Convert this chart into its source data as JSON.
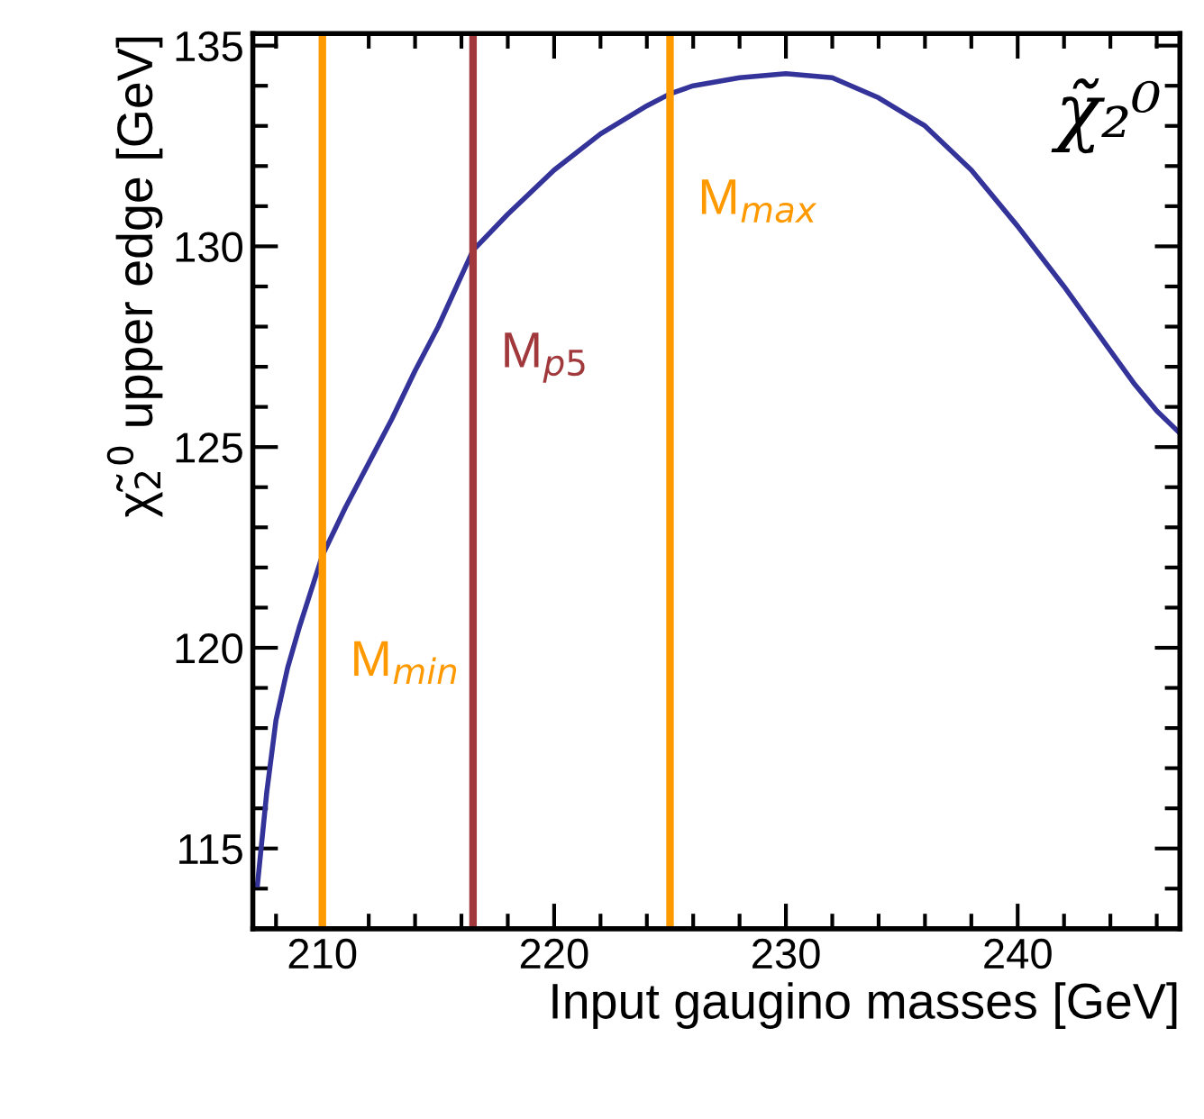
{
  "chart_data": {
    "type": "line",
    "xlabel": "Input gaugino masses [GeV]",
    "ylabel": "χ̃$_{2}$$^{0}$ upper edge [GeV]",
    "annotations": [
      "χ̃₂⁰"
    ],
    "xlim": [
      207,
      247
    ],
    "xticks": [
      210,
      220,
      230,
      240
    ],
    "ylim": [
      113,
      135.3
    ],
    "yticks": [
      115,
      120,
      125,
      130,
      135
    ],
    "grid": false,
    "legend": false,
    "marker": "none",
    "line_style": "solid",
    "series": [
      {
        "color": "#33339a",
        "x": [
          207.2,
          207.6,
          208,
          208.5,
          209,
          210,
          211,
          212,
          213,
          214,
          215,
          216.5,
          218,
          220,
          222,
          224,
          225,
          226,
          228,
          230,
          232,
          234,
          236,
          238,
          240,
          242,
          244,
          245,
          246,
          246.9
        ],
        "values": [
          114.1,
          116.4,
          118.2,
          119.5,
          120.5,
          122.3,
          123.5,
          124.6,
          125.7,
          126.9,
          128.0,
          129.9,
          130.8,
          131.9,
          132.8,
          133.5,
          133.8,
          134.0,
          134.2,
          134.3,
          134.2,
          133.7,
          133.0,
          131.9,
          130.5,
          129.0,
          127.4,
          126.6,
          125.9,
          125.4
        ]
      }
    ],
    "ref_lines": [
      {
        "axis": "x",
        "value": 210,
        "label": "M$_{min}$",
        "color": "#ff9900"
      },
      {
        "axis": "x",
        "value": 216.5,
        "label": "M$_{p5}$",
        "color": "#a0383c"
      },
      {
        "axis": "x",
        "value": 225,
        "label": "M$_{max}$",
        "color": "#ff9900"
      }
    ]
  }
}
